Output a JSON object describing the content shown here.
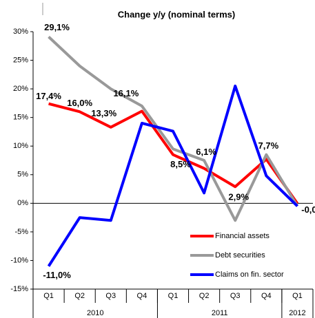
{
  "chart_data": {
    "type": "line",
    "title": "Change y/y (nominal terms)",
    "categories": [
      "Q1",
      "Q2",
      "Q3",
      "Q4",
      "Q1",
      "Q2",
      "Q3",
      "Q4",
      "Q1"
    ],
    "groups": [
      {
        "label": "2010",
        "span": 4
      },
      {
        "label": "2011",
        "span": 4
      },
      {
        "label": "2012",
        "span": 1
      }
    ],
    "ylim": [
      -15,
      30
    ],
    "yticks": [
      {
        "value": -15,
        "label": "-15%"
      },
      {
        "value": -10,
        "label": "-10%"
      },
      {
        "value": -5,
        "label": "-5%"
      },
      {
        "value": 0,
        "label": "0%"
      },
      {
        "value": 5,
        "label": "5%"
      },
      {
        "value": 10,
        "label": "10%"
      },
      {
        "value": 15,
        "label": "15%"
      },
      {
        "value": 20,
        "label": "20%"
      },
      {
        "value": 25,
        "label": "25%"
      },
      {
        "value": 30,
        "label": "30%"
      }
    ],
    "legend": "lower right",
    "series": [
      {
        "name": "Financial assets",
        "color": "#ff0000",
        "values": [
          17.4,
          16.0,
          13.3,
          16.1,
          8.5,
          6.1,
          2.9,
          7.7,
          -0.04
        ],
        "value_labels": [
          "17,4%",
          "16,0%",
          "13,3%",
          "16,1%",
          "8,5%",
          "6,1%",
          "2,9%",
          "7,7%",
          "-0,0"
        ]
      },
      {
        "name": "Debt securities",
        "color": "#999999",
        "values": [
          29.1,
          24.0,
          20.0,
          17.0,
          9.5,
          7.5,
          -3.0,
          8.5,
          -0.5
        ],
        "value_labels": [
          "29,1%",
          null,
          null,
          null,
          null,
          null,
          null,
          null,
          null
        ]
      },
      {
        "name": "Claims on fin. sector",
        "color": "#0000ff",
        "values": [
          -11.0,
          -2.5,
          -3.0,
          14.0,
          12.6,
          1.8,
          20.5,
          4.8,
          -0.5
        ],
        "value_labels": [
          "-11,0%",
          null,
          null,
          null,
          null,
          null,
          null,
          null,
          null
        ]
      }
    ]
  }
}
